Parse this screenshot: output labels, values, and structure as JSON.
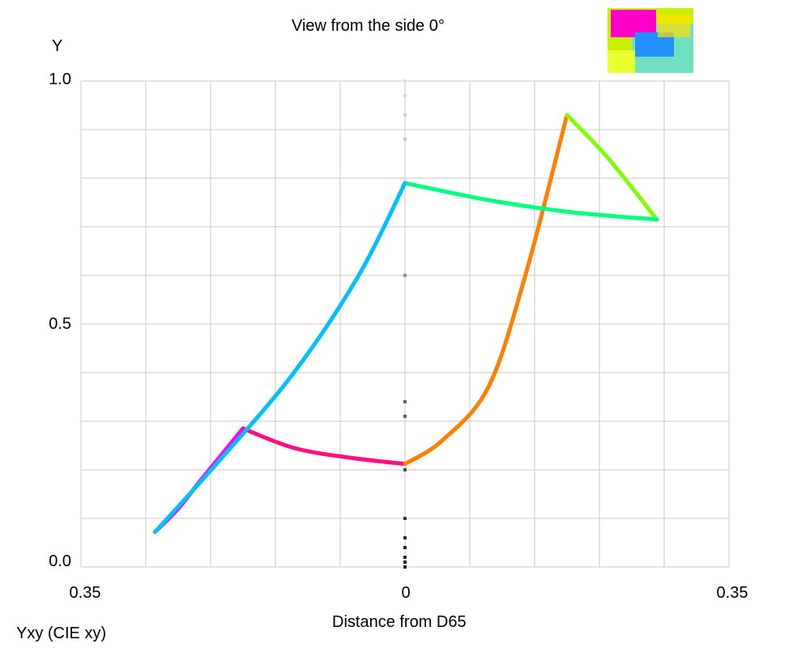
{
  "chart_data": {
    "type": "line",
    "title": "View from the side 0°",
    "xlabel": "Distance from D65",
    "ylabel": "Y",
    "footer": "Yxy (CIE xy)",
    "xlim": [
      -0.35,
      0.35
    ],
    "ylim": [
      0.0,
      1.0
    ],
    "x_tick_labels": [
      "0.35",
      "0",
      "0.35"
    ],
    "y_tick_labels": [
      "0.0",
      "0.5",
      "1.0"
    ],
    "grid": true,
    "series": [
      {
        "color": "#ff00ff",
        "points": [
          [
            -0.27,
            0.072
          ],
          [
            -0.245,
            0.12
          ],
          [
            -0.22,
            0.18
          ],
          [
            -0.175,
            0.285
          ]
        ]
      },
      {
        "color": "#ff1080",
        "points": [
          [
            -0.175,
            0.285
          ],
          [
            -0.12,
            0.245
          ],
          [
            -0.06,
            0.225
          ],
          [
            0.0,
            0.212
          ]
        ]
      },
      {
        "color": "#ff8000",
        "points": [
          [
            0.0,
            0.212
          ],
          [
            0.04,
            0.26
          ],
          [
            0.09,
            0.37
          ],
          [
            0.13,
            0.6
          ],
          [
            0.175,
            0.93
          ]
        ]
      },
      {
        "color": "#80ff00",
        "points": [
          [
            0.175,
            0.93
          ],
          [
            0.22,
            0.84
          ],
          [
            0.272,
            0.715
          ]
        ]
      },
      {
        "color": "#00ff80",
        "points": [
          [
            0.272,
            0.715
          ],
          [
            0.18,
            0.73
          ],
          [
            0.09,
            0.755
          ],
          [
            0.0,
            0.79
          ]
        ]
      },
      {
        "color": "#00c0ff",
        "points": [
          [
            0.0,
            0.79
          ],
          [
            -0.05,
            0.6
          ],
          [
            -0.12,
            0.4
          ],
          [
            -0.2,
            0.22
          ],
          [
            -0.27,
            0.072
          ]
        ]
      }
    ],
    "neutral_points": [
      0.0,
      0.01,
      0.02,
      0.04,
      0.06,
      0.1,
      0.2,
      0.31,
      0.34,
      0.6,
      0.88,
      0.93,
      0.97,
      1.0
    ]
  }
}
